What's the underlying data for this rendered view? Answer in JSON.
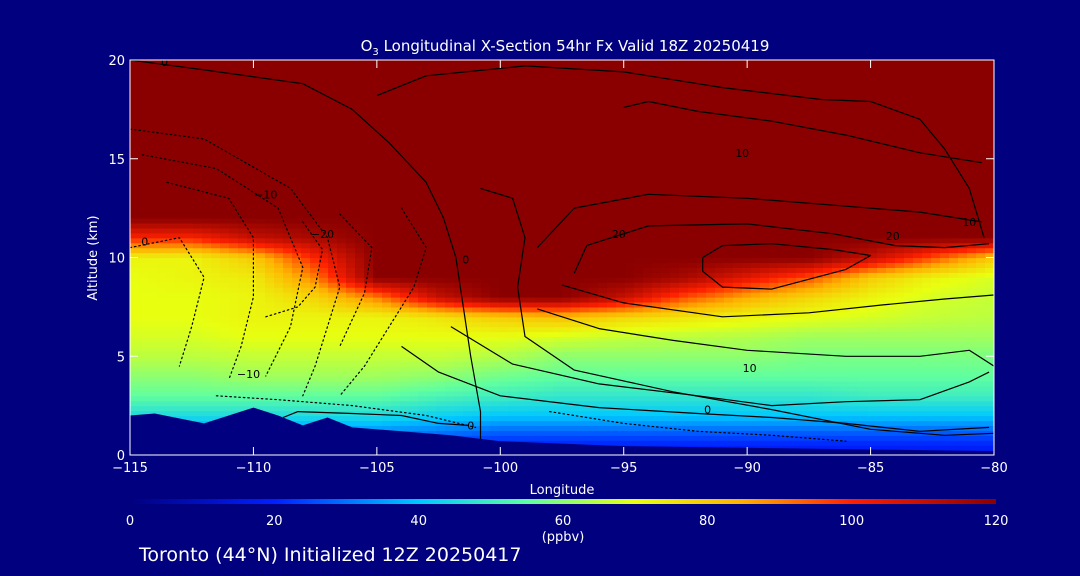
{
  "title": {
    "prefix": "O",
    "subscript": "3",
    "rest": " Longitudinal X-Section 54hr  Fx Valid 18Z 20250419"
  },
  "footer": "Toronto (44°N) Initialized 12Z 20250417",
  "colors": {
    "background": "#010180",
    "terrain": "#000080",
    "frame": "#ffffff",
    "contour": "#000000"
  },
  "chart_data": {
    "type": "heatmap",
    "variable": "O3",
    "xlabel": "Longitude",
    "ylabel": "Altitude (km)",
    "xlim": [
      -115,
      -80
    ],
    "ylim": [
      0,
      20
    ],
    "x_ticks": [
      -115,
      -110,
      -105,
      -100,
      -95,
      -90,
      -85,
      -80
    ],
    "x_tick_labels": [
      "−115",
      "−110",
      "−105",
      "−100",
      "−95",
      "−90",
      "−85",
      "−80"
    ],
    "y_ticks": [
      0,
      5,
      10,
      15,
      20
    ],
    "y_tick_labels": [
      "0",
      "5",
      "10",
      "15",
      "20"
    ],
    "colorbar": {
      "label": "(ppbv)",
      "range": [
        0,
        120
      ],
      "ticks": [
        0,
        20,
        40,
        60,
        80,
        100,
        120
      ],
      "tick_labels": [
        "0",
        "20",
        "40",
        "60",
        "80",
        "100",
        "120"
      ],
      "stops": [
        {
          "value": 0,
          "color": "#00007f"
        },
        {
          "value": 20,
          "color": "#0020ff"
        },
        {
          "value": 40,
          "color": "#00c8ff"
        },
        {
          "value": 55,
          "color": "#60ffa0"
        },
        {
          "value": 70,
          "color": "#e8ff10"
        },
        {
          "value": 85,
          "color": "#ffb000"
        },
        {
          "value": 100,
          "color": "#ff2000"
        },
        {
          "value": 120,
          "color": "#8a0000"
        }
      ]
    },
    "o3_field": {
      "lon": [
        -115,
        -112.5,
        -110,
        -107.5,
        -105,
        -102.5,
        -100,
        -97.5,
        -95,
        -92.5,
        -90,
        -87.5,
        -85,
        -82.5,
        -80
      ],
      "alt": [
        0,
        1,
        2,
        3,
        4,
        5,
        6,
        7,
        8,
        9,
        10,
        11,
        12,
        13,
        14,
        16,
        18,
        20
      ],
      "values": [
        [
          20,
          20,
          20,
          20,
          15,
          15,
          15,
          15,
          15,
          15,
          15,
          15,
          15,
          15,
          15
        ],
        [
          30,
          30,
          30,
          30,
          30,
          28,
          25,
          25,
          25,
          25,
          25,
          25,
          25,
          25,
          25
        ],
        [
          45,
          45,
          45,
          45,
          45,
          42,
          40,
          40,
          40,
          40,
          40,
          40,
          40,
          40,
          40
        ],
        [
          55,
          55,
          55,
          55,
          55,
          52,
          50,
          48,
          48,
          48,
          48,
          48,
          50,
          50,
          50
        ],
        [
          60,
          60,
          62,
          62,
          62,
          60,
          57,
          55,
          55,
          55,
          55,
          55,
          55,
          55,
          55
        ],
        [
          65,
          65,
          66,
          66,
          66,
          66,
          64,
          60,
          60,
          60,
          60,
          58,
          58,
          58,
          58
        ],
        [
          68,
          68,
          70,
          70,
          70,
          70,
          70,
          68,
          66,
          65,
          64,
          62,
          62,
          62,
          62
        ],
        [
          70,
          70,
          72,
          72,
          72,
          75,
          80,
          82,
          78,
          75,
          72,
          70,
          68,
          66,
          65
        ],
        [
          70,
          70,
          72,
          78,
          90,
          110,
          120,
          120,
          110,
          95,
          85,
          78,
          72,
          68,
          66
        ],
        [
          70,
          72,
          74,
          90,
          120,
          120,
          120,
          120,
          120,
          115,
          105,
          95,
          80,
          72,
          68
        ],
        [
          72,
          72,
          80,
          100,
          120,
          120,
          120,
          120,
          120,
          120,
          120,
          120,
          110,
          95,
          80
        ],
        [
          100,
          100,
          110,
          115,
          120,
          120,
          120,
          120,
          120,
          120,
          120,
          120,
          120,
          120,
          120
        ],
        [
          120,
          120,
          120,
          120,
          120,
          120,
          120,
          120,
          120,
          120,
          120,
          120,
          120,
          120,
          120
        ],
        [
          120,
          120,
          120,
          120,
          120,
          120,
          120,
          120,
          120,
          120,
          120,
          120,
          120,
          120,
          120
        ],
        [
          120,
          120,
          120,
          120,
          120,
          120,
          120,
          120,
          120,
          120,
          120,
          120,
          120,
          120,
          120
        ],
        [
          120,
          120,
          120,
          120,
          120,
          120,
          120,
          120,
          120,
          120,
          120,
          120,
          120,
          120,
          120
        ],
        [
          120,
          120,
          120,
          120,
          120,
          120,
          120,
          120,
          120,
          120,
          120,
          120,
          120,
          120,
          120
        ],
        [
          120,
          120,
          120,
          120,
          120,
          120,
          120,
          120,
          120,
          120,
          120,
          120,
          120,
          120,
          120
        ]
      ]
    },
    "terrain_km": {
      "lon": [
        -115,
        -114,
        -112,
        -110,
        -109,
        -108,
        -107,
        -106,
        -104,
        -102,
        -100,
        -98,
        -95,
        -92,
        -89,
        -86,
        -83,
        -80
      ],
      "height": [
        2.0,
        2.1,
        1.6,
        2.4,
        2.0,
        1.5,
        1.9,
        1.4,
        1.2,
        1.0,
        0.7,
        0.6,
        0.45,
        0.4,
        0.35,
        0.3,
        0.25,
        0.2
      ]
    },
    "contours": [
      {
        "style": "solid",
        "points": [
          [
            -115,
            20
          ],
          [
            -112,
            19.5
          ],
          [
            -108,
            18.8
          ],
          [
            -106,
            17.5
          ],
          [
            -104.5,
            15.8
          ],
          [
            -103,
            13.8
          ],
          [
            -102.3,
            12
          ],
          [
            -101.8,
            10
          ],
          [
            -101.5,
            7.5
          ],
          [
            -101.2,
            5
          ],
          [
            -100.8,
            2.2
          ],
          [
            -100.8,
            0.3
          ]
        ]
      },
      {
        "style": "solid",
        "points": [
          [
            -105,
            18.2
          ],
          [
            -103,
            19.2
          ],
          [
            -99,
            19.7
          ],
          [
            -95,
            19.4
          ],
          [
            -91,
            18.6
          ],
          [
            -87,
            18.0
          ],
          [
            -85,
            17.9
          ],
          [
            -83,
            17.0
          ],
          [
            -82,
            15.5
          ],
          [
            -81,
            13.5
          ],
          [
            -80.4,
            11
          ]
        ]
      },
      {
        "style": "solid",
        "points": [
          [
            -100.8,
            13.5
          ],
          [
            -99.5,
            13
          ],
          [
            -99,
            11
          ],
          [
            -99.3,
            8.5
          ],
          [
            -99,
            6
          ],
          [
            -97,
            4.3
          ],
          [
            -93,
            3.2
          ],
          [
            -89,
            2.3
          ],
          [
            -85,
            1.3
          ],
          [
            -82,
            1.0
          ],
          [
            -80,
            1.1
          ]
        ]
      },
      {
        "style": "solid",
        "points": [
          [
            -98.5,
            10.5
          ],
          [
            -97,
            12.5
          ],
          [
            -94,
            13.2
          ],
          [
            -90,
            13.0
          ],
          [
            -86,
            12.6
          ],
          [
            -83,
            12.3
          ],
          [
            -80.5,
            11.8
          ]
        ]
      },
      {
        "style": "solid",
        "points": [
          [
            -97,
            9.2
          ],
          [
            -96.5,
            10.6
          ],
          [
            -94,
            11.6
          ],
          [
            -90,
            11.7
          ],
          [
            -86.5,
            11.2
          ],
          [
            -84,
            10.6
          ],
          [
            -82,
            10.5
          ],
          [
            -80.2,
            10.7
          ]
        ]
      },
      {
        "style": "solid",
        "points": [
          [
            -91.8,
            10.0
          ],
          [
            -91,
            10.6
          ],
          [
            -89,
            10.7
          ],
          [
            -86.5,
            10.4
          ],
          [
            -85,
            10.1
          ],
          [
            -86,
            9.4
          ],
          [
            -89,
            8.4
          ],
          [
            -91,
            8.5
          ],
          [
            -91.8,
            9.3
          ],
          [
            -91.8,
            10.0
          ]
        ]
      },
      {
        "style": "solid",
        "points": [
          [
            -97.5,
            8.6
          ],
          [
            -95,
            7.7
          ],
          [
            -91,
            7.0
          ],
          [
            -87.5,
            7.2
          ],
          [
            -84.5,
            7.6
          ],
          [
            -82,
            7.9
          ],
          [
            -80,
            8.1
          ]
        ]
      },
      {
        "style": "solid",
        "points": [
          [
            -98.5,
            7.4
          ],
          [
            -96,
            6.4
          ],
          [
            -93,
            5.8
          ],
          [
            -90,
            5.3
          ],
          [
            -86,
            5.0
          ],
          [
            -83,
            5.0
          ],
          [
            -81,
            5.3
          ],
          [
            -80,
            4.5
          ]
        ]
      },
      {
        "style": "solid",
        "points": [
          [
            -102,
            6.5
          ],
          [
            -99.5,
            4.6
          ],
          [
            -96,
            3.6
          ],
          [
            -92,
            3.0
          ],
          [
            -89,
            2.5
          ],
          [
            -86,
            2.7
          ],
          [
            -83,
            2.8
          ],
          [
            -81,
            3.7
          ],
          [
            -80.2,
            4.2
          ]
        ]
      },
      {
        "style": "solid",
        "points": [
          [
            -104,
            5.5
          ],
          [
            -102.5,
            4.2
          ],
          [
            -100,
            3.0
          ],
          [
            -96,
            2.4
          ],
          [
            -92,
            2.1
          ],
          [
            -89,
            1.9
          ],
          [
            -86,
            1.6
          ],
          [
            -83,
            1.2
          ],
          [
            -80.2,
            1.4
          ]
        ]
      },
      {
        "style": "solid",
        "points": [
          [
            -108.8,
            1.9
          ],
          [
            -108.2,
            2.2
          ],
          [
            -106,
            2.1
          ],
          [
            -104,
            2.0
          ],
          [
            -102.5,
            1.6
          ],
          [
            -101.3,
            1.5
          ]
        ]
      },
      {
        "style": "solid",
        "points": [
          [
            -95,
            17.6
          ],
          [
            -94,
            17.9
          ],
          [
            -92,
            17.4
          ],
          [
            -89,
            16.9
          ],
          [
            -86,
            16.2
          ],
          [
            -83,
            15.3
          ],
          [
            -80.5,
            14.8
          ]
        ]
      },
      {
        "style": "dotted",
        "points": [
          [
            -115,
            16.5
          ],
          [
            -112,
            16.0
          ],
          [
            -108.5,
            13.5
          ],
          [
            -107,
            11.0
          ],
          [
            -106.5,
            8.5
          ],
          [
            -107,
            6.5
          ],
          [
            -107.5,
            4.5
          ],
          [
            -108,
            3.0
          ]
        ]
      },
      {
        "style": "dotted",
        "points": [
          [
            -114.5,
            15.2
          ],
          [
            -111.5,
            14.5
          ],
          [
            -109,
            12.5
          ],
          [
            -108,
            9.5
          ],
          [
            -108.5,
            6.5
          ],
          [
            -109.5,
            4.0
          ]
        ]
      },
      {
        "style": "dotted",
        "points": [
          [
            -113.5,
            13.8
          ],
          [
            -111,
            13.0
          ],
          [
            -110,
            11.0
          ],
          [
            -110,
            8.0
          ],
          [
            -110.5,
            5.5
          ],
          [
            -111,
            3.8
          ]
        ]
      },
      {
        "style": "dotted",
        "points": [
          [
            -115,
            10.5
          ],
          [
            -113,
            11.0
          ],
          [
            -112,
            9.0
          ],
          [
            -112.5,
            6.5
          ],
          [
            -113,
            4.5
          ]
        ]
      },
      {
        "style": "dotted",
        "points": [
          [
            -104,
            12.5
          ],
          [
            -103,
            10.5
          ],
          [
            -103.5,
            8.5
          ],
          [
            -104.5,
            6.5
          ],
          [
            -105.5,
            4.5
          ],
          [
            -106.5,
            3.0
          ]
        ]
      },
      {
        "style": "dotted",
        "points": [
          [
            -106.5,
            12.2
          ],
          [
            -105.2,
            10.5
          ],
          [
            -105.5,
            8.2
          ],
          [
            -106.5,
            5.5
          ]
        ]
      },
      {
        "style": "dotted",
        "points": [
          [
            -108,
            11.8
          ],
          [
            -107.2,
            10.4
          ],
          [
            -107.5,
            8.5
          ],
          [
            -108.2,
            7.5
          ],
          [
            -109.5,
            7.0
          ]
        ]
      },
      {
        "style": "dotted",
        "points": [
          [
            -111.5,
            3.0
          ],
          [
            -109,
            2.8
          ],
          [
            -106,
            2.5
          ],
          [
            -103,
            2.0
          ],
          [
            -101,
            1.4
          ]
        ]
      },
      {
        "style": "dotted",
        "points": [
          [
            -98,
            2.2
          ],
          [
            -95,
            1.6
          ],
          [
            -92,
            1.2
          ],
          [
            -89,
            1.0
          ],
          [
            -86,
            0.7
          ]
        ]
      }
    ],
    "contour_labels": [
      {
        "text": "−10",
        "lon": -109.5,
        "alt": 13.2
      },
      {
        "text": "−20",
        "lon": -107.2,
        "alt": 11.2
      },
      {
        "text": "−10",
        "lon": -110.2,
        "alt": 4.1
      },
      {
        "text": "0",
        "lon": -101.4,
        "alt": 9.9
      },
      {
        "text": "0",
        "lon": -101.2,
        "alt": 1.5
      },
      {
        "text": "10",
        "lon": -90.2,
        "alt": 15.3
      },
      {
        "text": "20",
        "lon": -95.2,
        "alt": 11.2
      },
      {
        "text": "20",
        "lon": -84.1,
        "alt": 11.1
      },
      {
        "text": "10",
        "lon": -89.9,
        "alt": 4.4
      },
      {
        "text": "0",
        "lon": -91.6,
        "alt": 2.3
      },
      {
        "text": "10",
        "lon": -81.0,
        "alt": 11.8
      },
      {
        "text": "0",
        "lon": -114.4,
        "alt": 10.8
      },
      {
        "text": "0",
        "lon": -113.6,
        "alt": 19.9
      }
    ]
  }
}
